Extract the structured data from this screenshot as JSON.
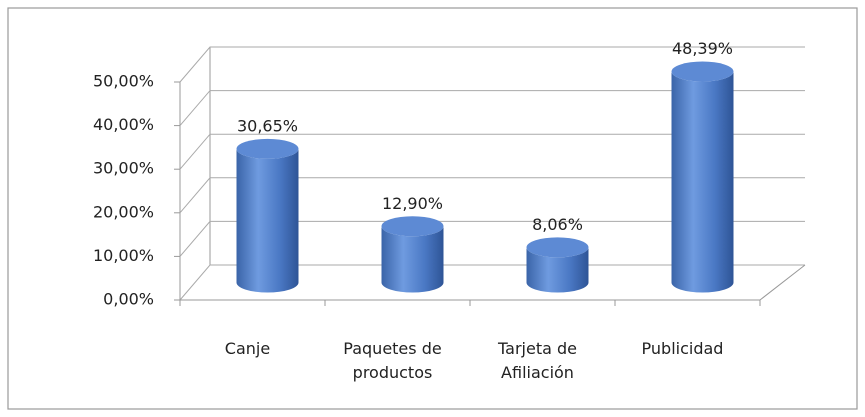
{
  "chart_data": {
    "type": "bar3d",
    "categories": [
      "Canje",
      "Paquetes de productos",
      "Tarjeta de Afiliación",
      "Publicidad"
    ],
    "values": [
      30.65,
      12.9,
      8.06,
      48.39
    ],
    "value_labels": [
      "30,65%",
      "12,90%",
      "8,06%",
      "48,39%"
    ],
    "color": "#4f81bd",
    "ylim": [
      0,
      50
    ],
    "yticks": [
      {
        "value": 0,
        "label": "0,00%"
      },
      {
        "value": 10,
        "label": "10,00%"
      },
      {
        "value": 20,
        "label": "20,00%"
      },
      {
        "value": 30,
        "label": "30,00%"
      },
      {
        "value": 40,
        "label": "40,00%"
      },
      {
        "value": 50,
        "label": "50,00%"
      }
    ],
    "grid": true
  }
}
